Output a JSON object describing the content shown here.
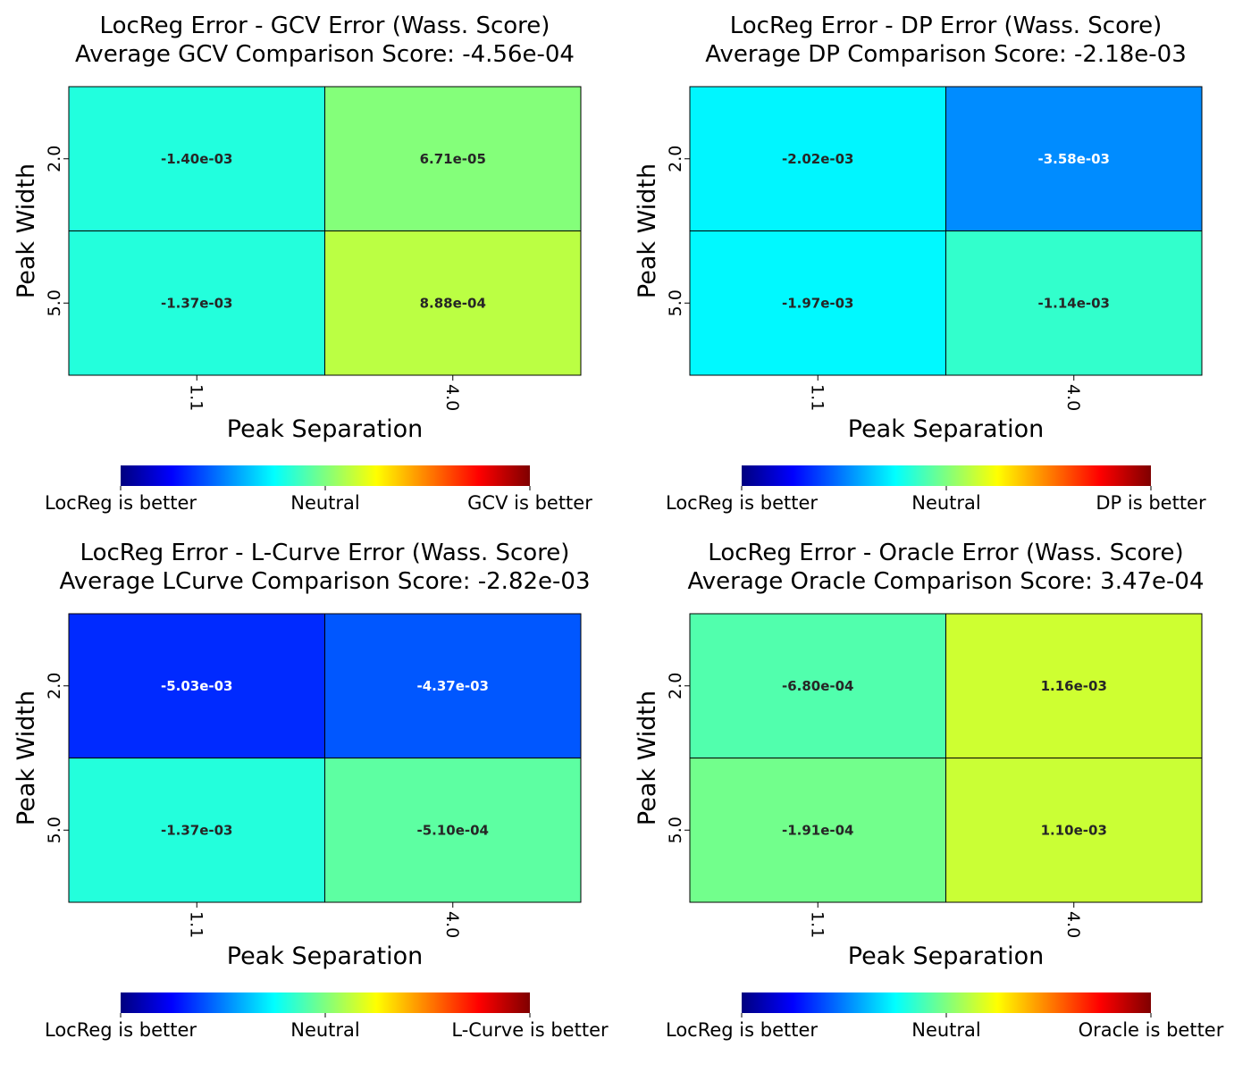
{
  "colormap": {
    "name": "jet",
    "stops": [
      "#00007f",
      "#0000ff",
      "#007fff",
      "#00ffff",
      "#7fff7f",
      "#ffff00",
      "#ff7f00",
      "#ff0000",
      "#7f0000"
    ]
  },
  "chart_data": [
    {
      "type": "heatmap",
      "title_line1": "LocReg Error - GCV Error (Wass. Score)",
      "title_line2": "Average GCV Comparison Score: -4.56e-04",
      "xlabel": "Peak Separation",
      "ylabel": "Peak Width",
      "x_categories": [
        "1.1",
        "4.0"
      ],
      "y_categories": [
        "2.0",
        "5.0"
      ],
      "values": [
        [
          -0.0014,
          6.71e-05
        ],
        [
          -0.00137,
          0.000888
        ]
      ],
      "annotations": [
        [
          "-1.40e-03",
          "6.71e-05"
        ],
        [
          "-1.37e-03",
          "8.88e-04"
        ]
      ],
      "colorbar": {
        "left_label": "LocReg is better",
        "center_label": "Neutral",
        "right_label": "GCV is better"
      }
    },
    {
      "type": "heatmap",
      "title_line1": "LocReg Error - DP Error (Wass. Score)",
      "title_line2": "Average DP Comparison Score: -2.18e-03",
      "xlabel": "Peak Separation",
      "ylabel": "Peak Width",
      "x_categories": [
        "1.1",
        "4.0"
      ],
      "y_categories": [
        "2.0",
        "5.0"
      ],
      "values": [
        [
          -0.00202,
          -0.00358
        ],
        [
          -0.00197,
          -0.00114
        ]
      ],
      "annotations": [
        [
          "-2.02e-03",
          "-3.58e-03"
        ],
        [
          "-1.97e-03",
          "-1.14e-03"
        ]
      ],
      "colorbar": {
        "left_label": "LocReg is better",
        "center_label": "Neutral",
        "right_label": "DP is better"
      }
    },
    {
      "type": "heatmap",
      "title_line1": "LocReg Error - L-Curve Error (Wass. Score)",
      "title_line2": "Average LCurve Comparison Score: -2.82e-03",
      "xlabel": "Peak Separation",
      "ylabel": "Peak Width",
      "x_categories": [
        "1.1",
        "4.0"
      ],
      "y_categories": [
        "2.0",
        "5.0"
      ],
      "values": [
        [
          -0.00503,
          -0.00437
        ],
        [
          -0.00137,
          -0.00051
        ]
      ],
      "annotations": [
        [
          "-5.03e-03",
          "-4.37e-03"
        ],
        [
          "-1.37e-03",
          "-5.10e-04"
        ]
      ],
      "colorbar": {
        "left_label": "LocReg is better",
        "center_label": "Neutral",
        "right_label": "L-Curve is better"
      }
    },
    {
      "type": "heatmap",
      "title_line1": "LocReg Error - Oracle Error (Wass. Score)",
      "title_line2": "Average Oracle Comparison Score: 3.47e-04",
      "xlabel": "Peak Separation",
      "ylabel": "Peak Width",
      "x_categories": [
        "1.1",
        "4.0"
      ],
      "y_categories": [
        "2.0",
        "5.0"
      ],
      "values": [
        [
          -0.00068,
          0.00116
        ],
        [
          -0.000191,
          0.0011
        ]
      ],
      "annotations": [
        [
          "-6.80e-04",
          "1.16e-03"
        ],
        [
          "-1.91e-04",
          "1.10e-03"
        ]
      ],
      "colorbar": {
        "left_label": "LocReg is better",
        "center_label": "Neutral",
        "right_label": "Oracle is better"
      }
    }
  ]
}
